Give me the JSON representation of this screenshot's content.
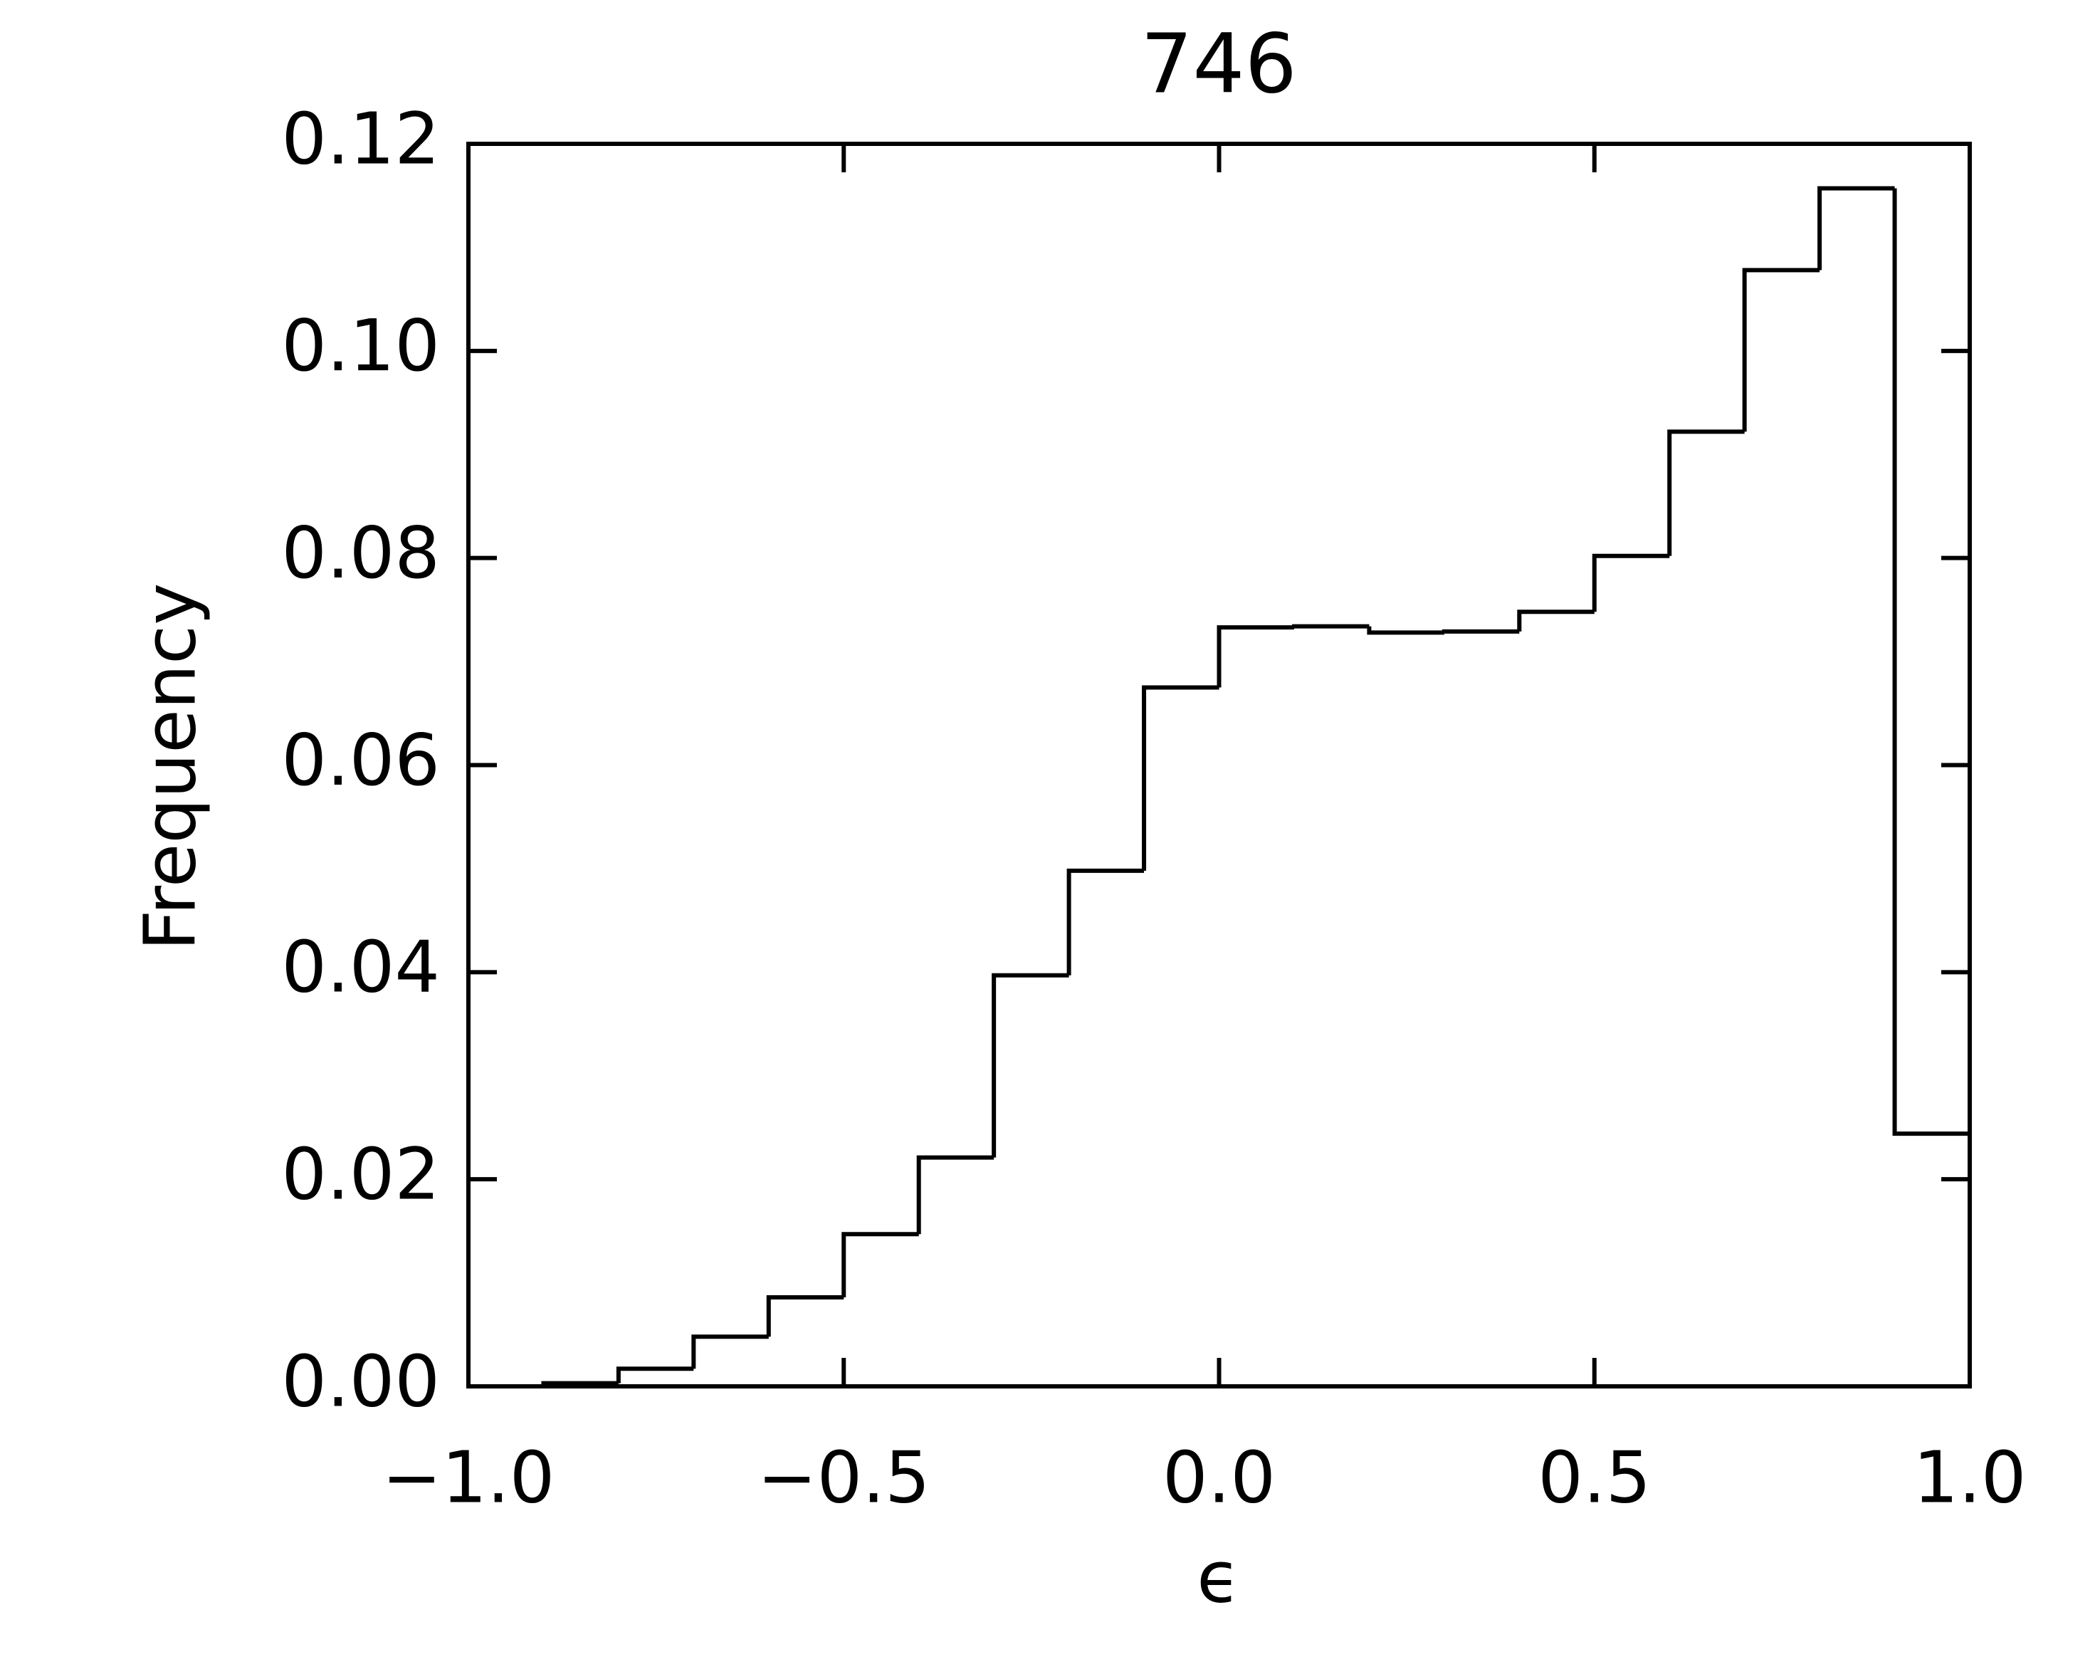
{
  "chart_data": {
    "type": "histogram",
    "title": "746",
    "x_label": "ϵ",
    "y_label": "Frequency",
    "bins": [
      -1.0,
      -0.9,
      -0.8,
      -0.7,
      -0.6,
      -0.5,
      -0.4,
      -0.3,
      -0.2,
      -0.1,
      0.0,
      0.1,
      0.2,
      0.3,
      0.4,
      0.5,
      0.6,
      0.7,
      0.8,
      0.9,
      1.0
    ],
    "values": [
      0.0,
      0.0003,
      0.0017,
      0.0048,
      0.0086,
      0.0147,
      0.0221,
      0.0397,
      0.0498,
      0.0675,
      0.0733,
      0.0734,
      0.0728,
      0.0729,
      0.0748,
      0.0802,
      0.0922,
      0.1078,
      0.1157,
      0.0244
    ],
    "color": "#000000",
    "xlim": [
      -1.0,
      1.0
    ],
    "xticks": [
      {
        "value": -1.0,
        "label": "−1.0"
      },
      {
        "value": -0.5,
        "label": "−0.5"
      },
      {
        "value": 0,
        "label": "0.0"
      },
      0.5,
      {
        "value": 1,
        "label": "1.0"
      }
    ],
    "ylim": [
      0,
      0.12
    ],
    "yticks": [
      {
        "value": 0,
        "label": "0.00"
      },
      0.02,
      0.04,
      0.06,
      0.08,
      {
        "value": 0.1,
        "label": "0.10"
      },
      0.12
    ],
    "grid": false
  }
}
